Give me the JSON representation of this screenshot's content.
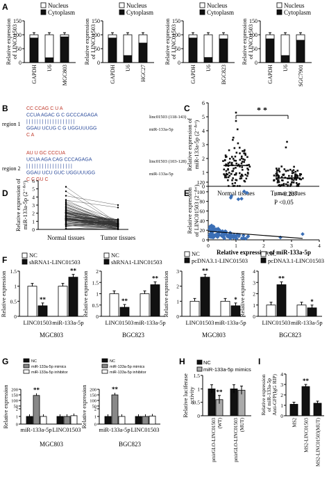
{
  "panels": {
    "A": {
      "letter": "A",
      "legend": [
        "Nucleus",
        "Cytoplasm"
      ],
      "ylabel": "Relative expression of LINC01503",
      "ylim": [
        0,
        150
      ],
      "yticks": [
        "0",
        "50",
        "100",
        "150"
      ],
      "charts": [
        {
          "cell": "MGC803",
          "categories": [
            "GAPDH",
            "U6",
            "MGC803"
          ],
          "nucleus": [
            12,
            83,
            8
          ],
          "total": [
            100,
            100,
            100
          ]
        },
        {
          "cell": "HGC27",
          "categories": [
            "GAPDH",
            "U6",
            "HGC27"
          ],
          "nucleus": [
            12,
            75,
            30
          ],
          "total": [
            100,
            100,
            100
          ]
        },
        {
          "cell": "BGC823",
          "categories": [
            "GAPDH",
            "U6",
            "BGC823"
          ],
          "nucleus": [
            12,
            82,
            15
          ],
          "total": [
            100,
            100,
            100
          ]
        },
        {
          "cell": "SGC7901",
          "categories": [
            "GAPDH",
            "U6",
            "SGC7901"
          ],
          "nucleus": [
            15,
            75,
            20
          ],
          "total": [
            100,
            100,
            100
          ]
        }
      ]
    },
    "B": {
      "letter": "B",
      "region1": {
        "label": "region 1",
        "lines": [
          "CC     CCAG      C  U  A",
          "  CCUA       AGAC  G   C  GCCCAGAGA",
          "  | | | |       | | | |       |   |  | | | | | | | | |",
          "  GGAU       UCUG  C   G  UGGUUUGG",
          "   C                      A"
        ],
        "linc_label": "linc01503 (118-143)",
        "mir_label": "miR-133a-5p"
      },
      "region2": {
        "label": "region 2",
        "lines": [
          "AU     U  GC    CCCUA",
          "   UCUA   AGA    CAG          CCCAGAGA",
          "   | | | |    | | |    | | |          | | | | | | | |",
          "   GGAU   UCU    GUC          UGGUUUGG",
          "   C              C    GU    C"
        ],
        "linc_label": "linc01503 (103-128)",
        "mir_label": "miR-133a-5p"
      }
    },
    "C": {
      "letter": "C",
      "ylabel": "Relative expression of miR-133a-5p (2⁻ΔCt)",
      "yticks": [
        "0",
        "1",
        "2",
        "3",
        "4",
        "5",
        "6"
      ],
      "ylim": [
        0,
        6
      ],
      "categories": [
        "Normal tissues",
        "Tumor tissues"
      ],
      "means": [
        1.5,
        0.6
      ],
      "significance": "* *"
    },
    "D": {
      "letter": "D",
      "ylabel": "Relative expression of miR-133a-5p (2⁻ΔCt)",
      "yticks": [
        "0",
        "1",
        "2",
        "3",
        "4",
        "5",
        "6"
      ],
      "categories": [
        "Normal tissues",
        "Tumor tissues"
      ]
    },
    "E": {
      "letter": "E",
      "ylabel": "Relative expression of LINC01503 (2⁻ΔCt)",
      "xlabel": "Relative expression of miR-133a-5p",
      "yticks": [
        "0",
        "20",
        "40",
        "60",
        "80",
        "100",
        "120"
      ],
      "xticks": [
        "0",
        "1",
        "2",
        "3",
        "4"
      ],
      "r_text": "r =-0.207",
      "p_text": "P <0.05"
    },
    "F": {
      "letter": "F",
      "ylabel": "Relative expression",
      "charts": [
        {
          "legend": [
            "NC",
            "shRNA1-LINC01503"
          ],
          "categories": [
            "LINC01503",
            "miR-133a-5p"
          ],
          "nc": [
            1.0,
            1.0
          ],
          "treat": [
            0.35,
            1.3
          ],
          "stars": [
            "**",
            "**"
          ],
          "yticks": [
            "0",
            "0.5",
            "1",
            "1.5"
          ],
          "ylim": [
            0,
            1.5
          ],
          "cell": "MGC803"
        },
        {
          "legend": [
            "NC",
            "shRNA1-LINC01503"
          ],
          "categories": [
            "LINC01503",
            "miR-133a-5p"
          ],
          "nc": [
            1.0,
            1.0
          ],
          "treat": [
            0.4,
            1.4
          ],
          "stars": [
            "**",
            "**"
          ],
          "yticks": [
            "0",
            "0.5",
            "1",
            "1.5",
            "2"
          ],
          "ylim": [
            0,
            2
          ],
          "cell": "BGC823"
        },
        {
          "legend": [
            "NC",
            "pcDNA3.1-LINC01503"
          ],
          "categories": [
            "LINC01503",
            "miR-133a-5p"
          ],
          "nc": [
            1.0,
            1.0
          ],
          "treat": [
            2.6,
            0.7
          ],
          "stars": [
            "**",
            "*"
          ],
          "yticks": [
            "0",
            "1",
            "2",
            "3"
          ],
          "ylim": [
            0,
            3
          ],
          "cell": "MGC803"
        },
        {
          "legend": [
            "NC",
            "pcDNA3.1-LINC01503"
          ],
          "categories": [
            "LINC01503",
            "miR-133a-5p"
          ],
          "nc": [
            1.0,
            1.0
          ],
          "treat": [
            2.8,
            0.75
          ],
          "stars": [
            "**",
            "*"
          ],
          "yticks": [
            "0",
            "1",
            "2",
            "3",
            "4"
          ],
          "ylim": [
            0,
            4
          ],
          "cell": "BGC823"
        }
      ]
    },
    "G": {
      "letter": "G",
      "ylabel": "Relative expression",
      "legend": [
        "NC",
        "miR-133a-5p mimics",
        "miR-133a-5p inhibitor"
      ],
      "charts": [
        {
          "cell": "MGC803",
          "categories": [
            "miR-133a-5p",
            "LINC01503"
          ],
          "nc": [
            1.0,
            1.0
          ],
          "mimics": [
            145,
            1.0
          ],
          "inhibitor": [
            1.0,
            1.1
          ],
          "star": "**",
          "yticks": [
            "0",
            "1",
            "2",
            "50",
            "100",
            "150",
            "200"
          ]
        },
        {
          "cell": "BGC823",
          "categories": [
            "miR-133a-5p",
            "LINC01503"
          ],
          "nc": [
            1.0,
            1.0
          ],
          "mimics": [
            150,
            1.0
          ],
          "inhibitor": [
            1.0,
            1.05
          ],
          "star": "**",
          "yticks": [
            "0",
            "1",
            "2",
            "50",
            "100",
            "150",
            "200"
          ]
        }
      ]
    },
    "H": {
      "letter": "H",
      "legend": [
        "NC",
        "miR-133a-5p mimics"
      ],
      "ylabel": "Relative luciferase activity",
      "yticks": [
        "0",
        "0.5",
        "1",
        "1.5"
      ],
      "ylim": [
        0,
        1.5
      ],
      "categories": [
        "pmirGLO-LINC01503 (WT)",
        "pmirGLO-LINC01503 (MUT)"
      ],
      "nc": [
        1.0,
        1.0
      ],
      "mimics": [
        0.6,
        0.95
      ],
      "star": "**"
    },
    "I": {
      "letter": "I",
      "ylabel": "Relative expression of miR-133a-5p Anti-GFP(IgG RIP)",
      "yticks": [
        "0",
        "1",
        "2",
        "3",
        "4"
      ],
      "ylim": [
        0,
        4
      ],
      "categories": [
        "MS2",
        "MS2-LINC01503",
        "MS2-LINC01503(MUT)"
      ],
      "values": [
        1.1,
        2.8,
        1.2
      ],
      "star": "**"
    }
  }
}
